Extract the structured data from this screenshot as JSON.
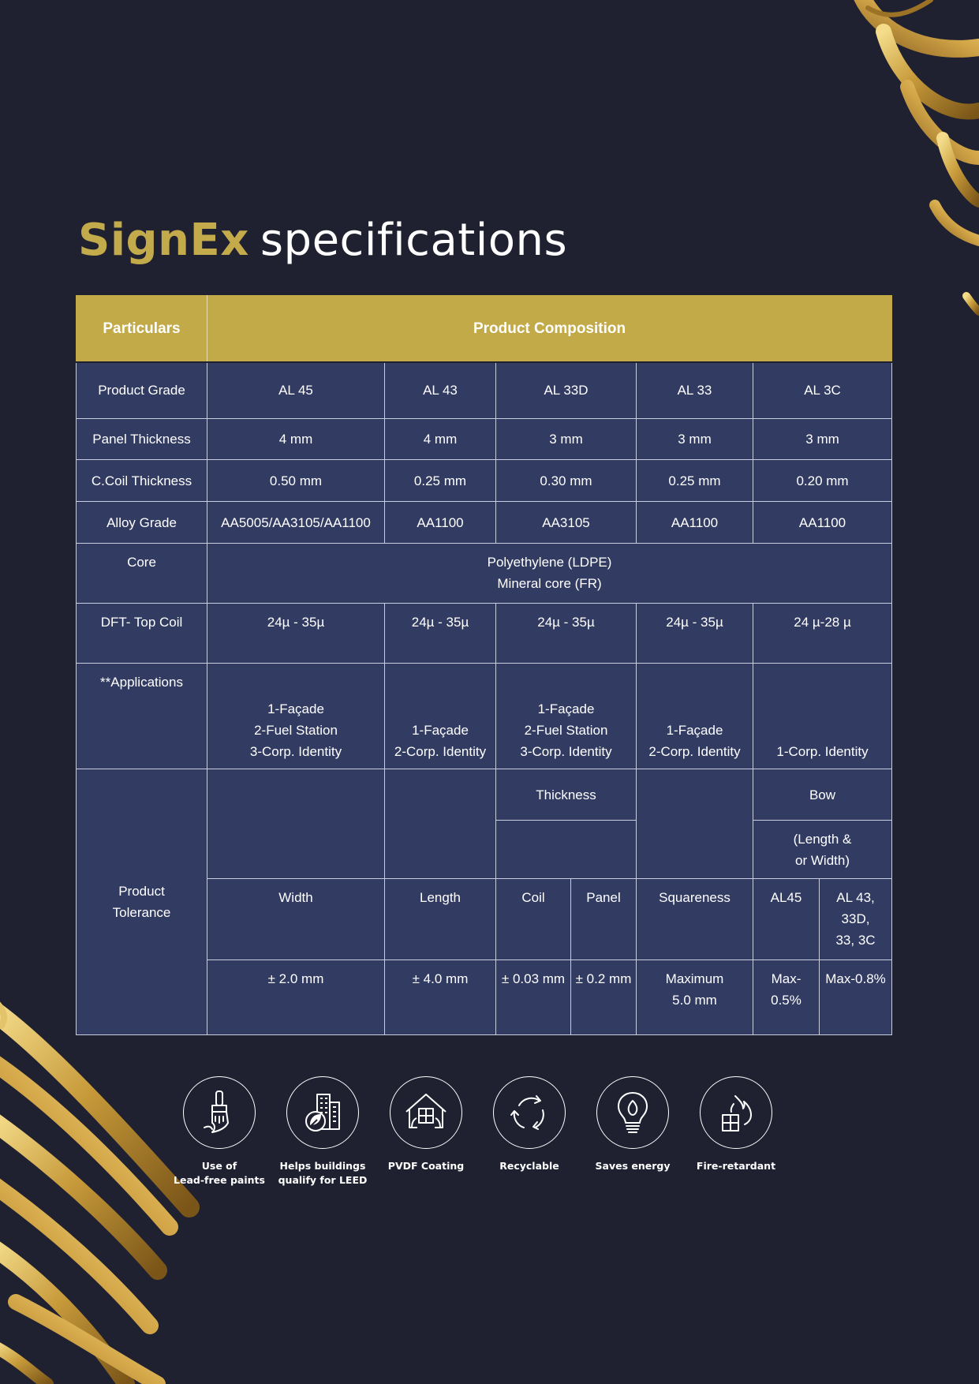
{
  "title": {
    "brand": "SignEx",
    "rest": "specifications"
  },
  "table": {
    "header": {
      "particulars": "Particulars",
      "composition": "Product Composition"
    },
    "rows": {
      "grade": {
        "label": "Product Grade",
        "values": [
          "AL 45",
          "AL 43",
          "AL 33D",
          "AL 33",
          "AL 3C"
        ]
      },
      "panel": {
        "label": "Panel Thickness",
        "values": [
          "4 mm",
          "4 mm",
          "3 mm",
          "3 mm",
          "3 mm"
        ]
      },
      "coil": {
        "label": "C.Coil Thickness",
        "values": [
          "0.50 mm",
          "0.25 mm",
          "0.30 mm",
          "0.25 mm",
          "0.20  mm"
        ]
      },
      "alloy": {
        "label": "Alloy Grade",
        "values": [
          "AA5005/AA3105/AA1100",
          "AA1100",
          "AA3105",
          "AA1100",
          "AA1100"
        ]
      },
      "core": {
        "label": "Core",
        "line1": "Polyethylene (LDPE)",
        "line2": "Mineral core (FR)"
      },
      "dft": {
        "label": "DFT- Top Coil",
        "values": [
          "24µ - 35µ",
          "24µ - 35µ",
          "24µ - 35µ",
          "24µ - 35µ",
          "24 µ-28 µ"
        ]
      },
      "apps": {
        "label": "**Applications",
        "values": [
          [
            "1-Façade",
            "2-Fuel Station",
            "3-Corp. Identity"
          ],
          [
            "1-Façade",
            "2-Corp. Identity"
          ],
          [
            "1-Façade",
            "2-Fuel Station",
            "3-Corp. Identity"
          ],
          [
            "1-Façade",
            "2-Corp. Identity"
          ],
          [
            "1-Corp. Identity"
          ]
        ]
      },
      "tolerance": {
        "label_line1": "Product",
        "label_line2": "Tolerance",
        "thickness": "Thickness",
        "bow": "Bow",
        "bow_sub_line1": "(Length &",
        "bow_sub_line2": "or Width)",
        "headers": {
          "width": "Width",
          "length": "Length",
          "coil": "Coil",
          "panel": "Panel",
          "squareness": "Squareness",
          "al45": "AL45",
          "al_rest_line1": "AL 43,",
          "al_rest_line2": "33D,",
          "al_rest_line3": "33, 3C"
        },
        "values": {
          "width": "± 2.0 mm",
          "length": "± 4.0 mm",
          "coil": "± 0.03 mm",
          "panel": "± 0.2 mm",
          "squareness_line1": "Maximum",
          "squareness_line2": "5.0 mm",
          "al45": "Max-0.5%",
          "al_rest": "Max-0.8%"
        }
      }
    }
  },
  "features": [
    {
      "icon": "paint-brush-icon",
      "label": "Use of\nLead-free paints"
    },
    {
      "icon": "leaf-building-icon",
      "label": "Helps buildings\nqualify for LEED"
    },
    {
      "icon": "house-window-icon",
      "label": "PVDF Coating"
    },
    {
      "icon": "recycle-icon",
      "label": "Recyclable"
    },
    {
      "icon": "bulb-flame-icon",
      "label": "Saves energy"
    },
    {
      "icon": "fire-blocks-icon",
      "label": "Fire-retardant"
    }
  ],
  "colors": {
    "background": "#1f2030",
    "gold": "#c3aa48",
    "table_cell": "#323b62",
    "grid": "#c9cde0"
  }
}
